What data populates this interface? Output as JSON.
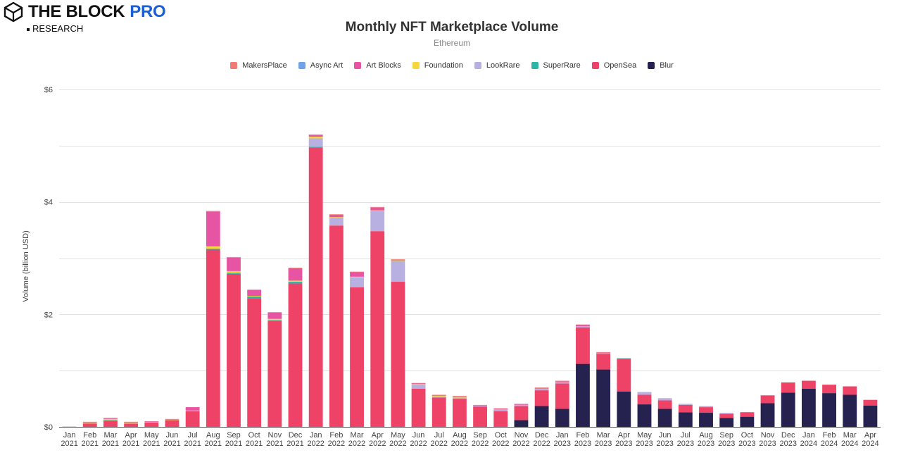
{
  "brand": {
    "name": "THE BLOCK",
    "pro": "PRO",
    "sub": "RESEARCH",
    "accent": "#1a5fd6"
  },
  "chart_data": {
    "type": "bar",
    "stacked": true,
    "title": "Monthly NFT Marketplace Volume",
    "subtitle": "Ethereum",
    "xlabel": "",
    "ylabel": "Volume (billion USD)",
    "ylim": [
      0,
      6
    ],
    "yticks": [
      0,
      2,
      4,
      6
    ],
    "ytick_labels": [
      "$0",
      "$2",
      "$4",
      "$6"
    ],
    "grid": true,
    "legend_position": "top-center",
    "categories": [
      "Jan 2021",
      "Feb 2021",
      "Mar 2021",
      "Apr 2021",
      "May 2021",
      "Jun 2021",
      "Jul 2021",
      "Aug 2021",
      "Sep 2021",
      "Oct 2021",
      "Nov 2021",
      "Dec 2021",
      "Jan 2022",
      "Feb 2022",
      "Mar 2022",
      "Apr 2022",
      "May 2022",
      "Jun 2022",
      "Jul 2022",
      "Aug 2022",
      "Sep 2022",
      "Oct 2022",
      "Nov 2022",
      "Dec 2022",
      "Jan 2023",
      "Feb 2023",
      "Mar 2023",
      "Apr 2023",
      "May 2023",
      "Jun 2023",
      "Jul 2023",
      "Aug 2023",
      "Sep 2023",
      "Oct 2023",
      "Nov 2023",
      "Dec 2023",
      "Jan 2024",
      "Feb 2024",
      "Mar 2024",
      "Apr 2024"
    ],
    "series": [
      {
        "name": "Blur",
        "color": "#26224f",
        "values": [
          0,
          0,
          0,
          0,
          0,
          0,
          0,
          0,
          0,
          0,
          0,
          0,
          0,
          0,
          0,
          0,
          0,
          0,
          0,
          0,
          0,
          0,
          0.12,
          0.37,
          0.32,
          1.12,
          1.02,
          0.63,
          0.4,
          0.32,
          0.26,
          0.25,
          0.16,
          0.18,
          0.42,
          0.61,
          0.68,
          0.6,
          0.57,
          0.38
        ]
      },
      {
        "name": "OpenSea",
        "color": "#ee4266",
        "values": [
          0,
          0.06,
          0.11,
          0.05,
          0.08,
          0.12,
          0.28,
          3.15,
          2.72,
          2.28,
          1.88,
          2.55,
          4.96,
          3.58,
          2.48,
          3.48,
          2.58,
          0.68,
          0.52,
          0.5,
          0.36,
          0.28,
          0.25,
          0.28,
          0.45,
          0.65,
          0.28,
          0.58,
          0.17,
          0.15,
          0.13,
          0.1,
          0.07,
          0.08,
          0.14,
          0.18,
          0.14,
          0.15,
          0.15,
          0.1
        ]
      },
      {
        "name": "SuperRare",
        "color": "#2bb5a8",
        "values": [
          0,
          0,
          0.01,
          0.01,
          0,
          0,
          0,
          0.02,
          0.02,
          0.04,
          0.02,
          0.03,
          0.02,
          0,
          0,
          0,
          0,
          0,
          0,
          0,
          0,
          0,
          0,
          0,
          0,
          0,
          0,
          0.01,
          0,
          0,
          0,
          0,
          0,
          0,
          0,
          0,
          0,
          0,
          0,
          0
        ]
      },
      {
        "name": "LookRare",
        "color": "#b8b0e0",
        "values": [
          0,
          0,
          0,
          0,
          0,
          0,
          0,
          0,
          0,
          0,
          0,
          0,
          0.15,
          0.14,
          0.18,
          0.36,
          0.37,
          0.07,
          0.02,
          0.02,
          0.01,
          0.03,
          0.02,
          0.03,
          0.02,
          0.02,
          0.01,
          0,
          0.05,
          0.04,
          0.02,
          0.02,
          0.02,
          0,
          0,
          0,
          0,
          0,
          0,
          0
        ]
      },
      {
        "name": "Foundation",
        "color": "#f5d63d",
        "values": [
          0.01,
          0.01,
          0.02,
          0.01,
          0.01,
          0.01,
          0.01,
          0.04,
          0.03,
          0.01,
          0.02,
          0.02,
          0.03,
          0.01,
          0.01,
          0.01,
          0.01,
          0.01,
          0.01,
          0.01,
          0,
          0,
          0,
          0,
          0,
          0,
          0,
          0,
          0,
          0,
          0,
          0,
          0,
          0,
          0,
          0,
          0,
          0,
          0,
          0
        ]
      },
      {
        "name": "Art Blocks",
        "color": "#e754a4",
        "values": [
          0,
          0.01,
          0.01,
          0.01,
          0.01,
          0.01,
          0.06,
          0.62,
          0.24,
          0.1,
          0.11,
          0.22,
          0.03,
          0.04,
          0.08,
          0.05,
          0.01,
          0.01,
          0.01,
          0.01,
          0.01,
          0.01,
          0.01,
          0.01,
          0.01,
          0.02,
          0.01,
          0,
          0,
          0,
          0,
          0,
          0,
          0,
          0,
          0,
          0,
          0,
          0,
          0
        ]
      },
      {
        "name": "Async Art",
        "color": "#6fa3e8",
        "values": [
          0,
          0,
          0,
          0,
          0,
          0,
          0,
          0,
          0,
          0,
          0,
          0,
          0,
          0,
          0,
          0,
          0,
          0,
          0,
          0,
          0,
          0,
          0,
          0,
          0,
          0,
          0,
          0,
          0,
          0,
          0,
          0,
          0,
          0,
          0,
          0,
          0,
          0,
          0,
          0
        ]
      },
      {
        "name": "MakersPlace",
        "color": "#f07a74",
        "values": [
          0,
          0.01,
          0.01,
          0.01,
          0,
          0,
          0,
          0.01,
          0.01,
          0.01,
          0.01,
          0.01,
          0.01,
          0.01,
          0.01,
          0.01,
          0.01,
          0.01,
          0.01,
          0.01,
          0.01,
          0.01,
          0.01,
          0.01,
          0.02,
          0.01,
          0.01,
          0,
          0,
          0,
          0,
          0,
          0,
          0,
          0,
          0,
          0,
          0,
          0,
          0
        ]
      }
    ],
    "legend_order": [
      "MakersPlace",
      "Async Art",
      "Art Blocks",
      "Foundation",
      "LookRare",
      "SuperRare",
      "OpenSea",
      "Blur"
    ]
  }
}
